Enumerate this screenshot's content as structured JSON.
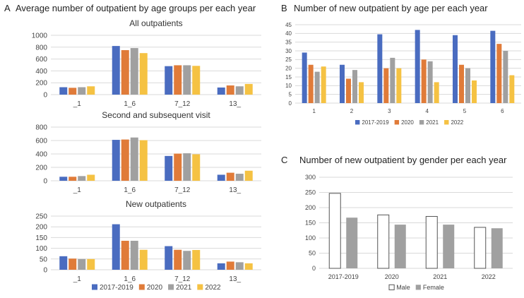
{
  "panels": {
    "A": {
      "letter": "A",
      "title": "Average number of outpatient by age groups per each year"
    },
    "B": {
      "letter": "B",
      "title": "Number of new outpatient by age per each year"
    },
    "C": {
      "letter": "C",
      "title": "Number of new outpatient by gender per each year"
    }
  },
  "colors": {
    "s2017": "#4a6cc0",
    "s2020": "#e07b39",
    "s2021": "#a0a0a0",
    "s2022": "#f5c243",
    "female": "#a0a0a0",
    "male": "#ffffff",
    "grid": "#d9d9d9"
  },
  "chart_data": [
    {
      "id": "A1",
      "type": "bar",
      "title": "All outpatients",
      "categories": [
        "_1",
        "1_6",
        "7_12",
        "13_"
      ],
      "ylim": [
        0,
        1000
      ],
      "yticks": [
        0,
        200,
        400,
        600,
        800,
        1000
      ],
      "series": [
        {
          "name": "2017-2019",
          "values": [
            125,
            820,
            480,
            120
          ]
        },
        {
          "name": "2020",
          "values": [
            115,
            750,
            495,
            155
          ]
        },
        {
          "name": "2021",
          "values": [
            125,
            785,
            495,
            140
          ]
        },
        {
          "name": "2022",
          "values": [
            140,
            700,
            485,
            180
          ]
        }
      ]
    },
    {
      "id": "A2",
      "type": "bar",
      "title": "Second and subsequent visit",
      "categories": [
        "_1",
        "1_6",
        "7_12",
        "13_"
      ],
      "ylim": [
        0,
        800
      ],
      "yticks": [
        0,
        200,
        400,
        600,
        800
      ],
      "series": [
        {
          "name": "2017-2019",
          "values": [
            60,
            610,
            370,
            90
          ]
        },
        {
          "name": "2020",
          "values": [
            60,
            615,
            405,
            120
          ]
        },
        {
          "name": "2021",
          "values": [
            70,
            645,
            410,
            105
          ]
        },
        {
          "name": "2022",
          "values": [
            90,
            605,
            395,
            150
          ]
        }
      ]
    },
    {
      "id": "A3",
      "type": "bar",
      "title": "New outpatients",
      "categories": [
        "_1",
        "1_6",
        "7_12",
        "13_"
      ],
      "ylim": [
        0,
        250
      ],
      "yticks": [
        0,
        50,
        100,
        150,
        200,
        250
      ],
      "series": [
        {
          "name": "2017-2019",
          "values": [
            63,
            212,
            110,
            30
          ]
        },
        {
          "name": "2020",
          "values": [
            52,
            135,
            93,
            38
          ]
        },
        {
          "name": "2021",
          "values": [
            50,
            135,
            88,
            35
          ]
        },
        {
          "name": "2022",
          "values": [
            50,
            93,
            92,
            30
          ]
        }
      ],
      "legend": [
        "2017-2019",
        "2020",
        "2021",
        "2022"
      ]
    },
    {
      "id": "B",
      "type": "bar",
      "title": "Number of new outpatient by age per each year",
      "categories": [
        "1",
        "2",
        "3",
        "4",
        "5",
        "6"
      ],
      "ylim": [
        0,
        45
      ],
      "yticks": [
        0,
        5,
        10,
        15,
        20,
        25,
        30,
        35,
        40,
        45
      ],
      "series": [
        {
          "name": "2017-2019",
          "values": [
            29,
            22,
            39.5,
            42,
            39,
            41.5
          ]
        },
        {
          "name": "2020",
          "values": [
            22,
            14,
            20,
            25,
            22,
            34
          ]
        },
        {
          "name": "2021",
          "values": [
            18,
            19,
            26,
            24,
            20,
            30
          ]
        },
        {
          "name": "2022",
          "values": [
            21,
            12,
            20,
            12,
            13,
            16
          ]
        }
      ],
      "legend": [
        "2017-2019",
        "2020",
        "2021",
        "2022"
      ]
    },
    {
      "id": "C",
      "type": "bar",
      "title": "Number of new outpatient by gender per each year",
      "categories": [
        "2017-2019",
        "2020",
        "2021",
        "2022"
      ],
      "ylim": [
        0,
        300
      ],
      "yticks": [
        0,
        50,
        100,
        150,
        200,
        250,
        300
      ],
      "series": [
        {
          "name": "Male",
          "values": [
            247,
            176,
            171,
            135
          ]
        },
        {
          "name": "Female",
          "values": [
            167,
            144,
            144,
            132
          ]
        }
      ],
      "legend": [
        "Male",
        "Female"
      ]
    }
  ]
}
